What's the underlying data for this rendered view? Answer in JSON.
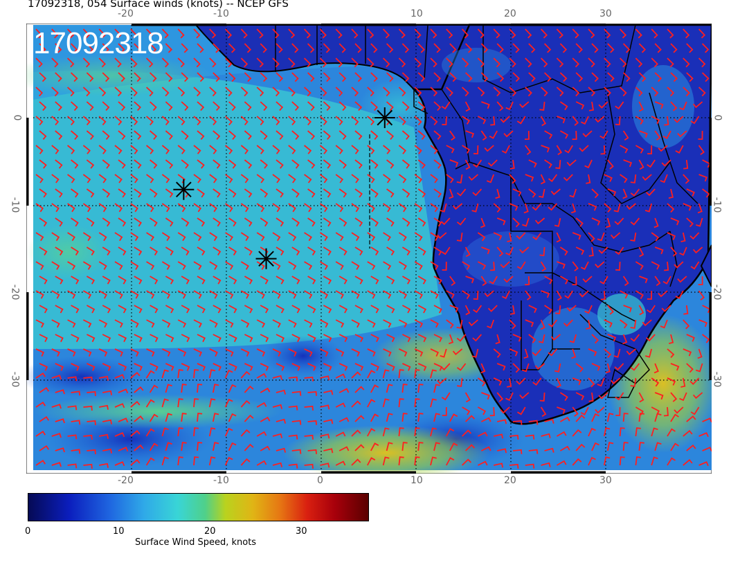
{
  "title": "17092318, 054 Surface winds (knots) -- NCEP GFS",
  "stamp": "17092318",
  "axes": {
    "x_ticks": [
      "-20",
      "-10",
      "0",
      "10",
      "20",
      "30"
    ],
    "y_ticks": [
      "0",
      "-10",
      "-20",
      "-30"
    ],
    "lon_range": [
      -30.5,
      41.5
    ],
    "lat_range": [
      -40,
      10
    ]
  },
  "colorbar": {
    "labels": [
      "0",
      "10",
      "20",
      "30"
    ],
    "title": "Surface Wind Speed, knots",
    "range": [
      0,
      38
    ]
  },
  "markers": [
    {
      "name": "star-marker-1",
      "lon": 6.7,
      "lat": 0.0
    },
    {
      "name": "star-marker-2",
      "lon": -14.5,
      "lat": -8.2
    },
    {
      "name": "star-marker-3",
      "lon": -5.8,
      "lat": -16.1
    }
  ],
  "colors": {
    "barbs": "#ff1e1e",
    "land": "#1a2fb8",
    "ocean_calm": "#2c8ee0",
    "ocean_trades": "#3bc9d0",
    "strong_wind": "#d8c21c",
    "coast": "#000000"
  },
  "icons": {
    "marker": "asterisk-star-icon",
    "barb": "wind-barb-icon"
  }
}
